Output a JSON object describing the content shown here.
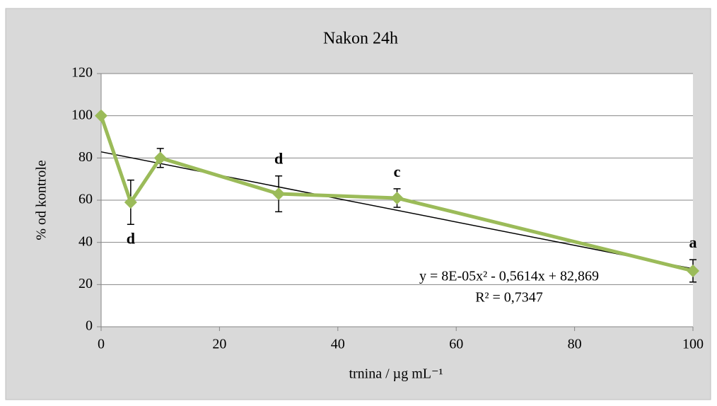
{
  "chart_data": {
    "type": "line",
    "title": "Nakon 24h",
    "x_label": "trnina / µg mL⁻¹",
    "y_label": "% od kontrole",
    "x": [
      0,
      5,
      10,
      30,
      50,
      100
    ],
    "series": [
      {
        "name": "Nakon 24h",
        "color": "#9bbb59",
        "values": [
          100,
          59,
          80,
          63,
          61,
          26.5
        ],
        "errors": [
          1,
          10.5,
          4.5,
          8.5,
          4.4,
          5.3
        ],
        "point_labels": [
          null,
          "d",
          null,
          "d",
          "c",
          "a"
        ]
      }
    ],
    "trendline": {
      "color": "#000000",
      "x": [
        0,
        100
      ],
      "values": [
        82.9,
        27.5
      ],
      "equation": "y = 8E-05x² - 0,5614x + 82,869",
      "r_squared": "R² = 0,7347"
    },
    "xlim": [
      0,
      100
    ],
    "xticks": [
      0,
      20,
      40,
      60,
      80,
      100
    ],
    "ylim": [
      0,
      120
    ],
    "yticks": [
      0,
      20,
      40,
      60,
      80,
      100,
      120
    ],
    "grid": true
  }
}
